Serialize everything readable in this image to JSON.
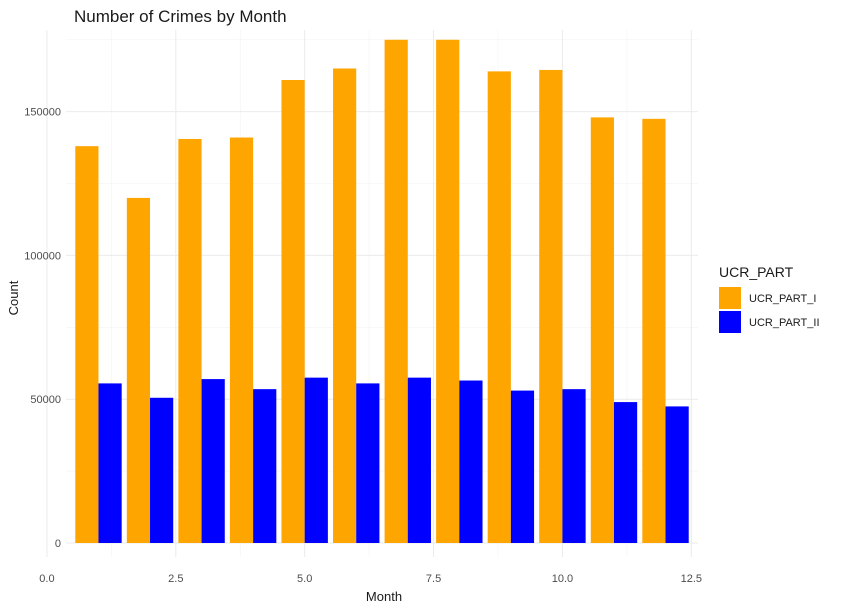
{
  "chart_data": {
    "type": "bar",
    "title": "Number of Crimes by Month",
    "xlabel": "Month",
    "ylabel": "Count",
    "x": [
      1,
      2,
      3,
      4,
      5,
      6,
      7,
      8,
      9,
      10,
      11,
      12
    ],
    "series": [
      {
        "name": "UCR_PART_I",
        "color": "#FFA500",
        "values": [
          138000,
          120000,
          140500,
          141000,
          161000,
          165000,
          175000,
          175000,
          164000,
          164500,
          148000,
          147500
        ]
      },
      {
        "name": "UCR_PART_II",
        "color": "#0000FF",
        "values": [
          55500,
          50500,
          57000,
          53500,
          57500,
          55500,
          57500,
          56500,
          53000,
          53500,
          49000,
          47500
        ]
      }
    ],
    "xlim": [
      0,
      12.5
    ],
    "xticks": [
      0,
      2.5,
      5,
      7.5,
      10,
      12.5
    ],
    "xtick_labels": [
      "0.0",
      "2.5",
      "5.0",
      "7.5",
      "10.0",
      "12.5"
    ],
    "ylim": [
      0,
      175000
    ],
    "yticks": [
      0,
      50000,
      100000,
      150000
    ],
    "ytick_labels": [
      "0",
      "50000",
      "100000",
      "150000"
    ],
    "legend": {
      "title": "UCR_PART",
      "position": "right"
    },
    "grid": true
  }
}
